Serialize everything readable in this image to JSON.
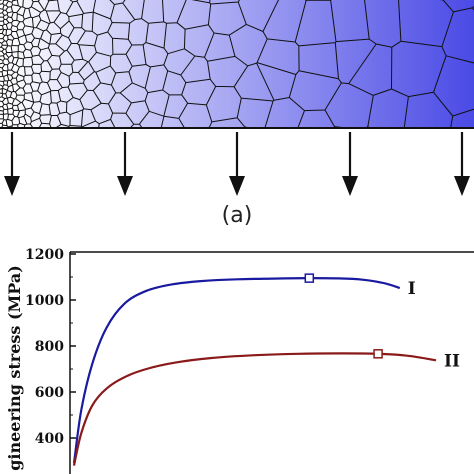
{
  "panel_a": {
    "label": "(a)",
    "gradient_colors": [
      "#ffffff",
      "#4a4ae6"
    ],
    "grain_outline_color": "#111111",
    "arrow_count": 5
  },
  "chart_data": {
    "type": "line",
    "ylabel": "gineering stress (MPa)",
    "yticks": [
      400,
      600,
      800,
      1000,
      1200
    ],
    "ylim": [
      300,
      1250
    ],
    "x_range": [
      0,
      1
    ],
    "series": [
      {
        "name": "I",
        "color": "#1a1aa0",
        "x": [
          0.0,
          0.02,
          0.05,
          0.09,
          0.14,
          0.2,
          0.27,
          0.35,
          0.45,
          0.55,
          0.65,
          0.73,
          0.8,
          0.86,
          0.9
        ],
        "y": [
          290,
          520,
          720,
          880,
          985,
          1040,
          1068,
          1082,
          1090,
          1093,
          1095,
          1094,
          1088,
          1072,
          1052
        ],
        "marker_index": 10
      },
      {
        "name": "II",
        "color": "#8a1a1a",
        "x": [
          0.0,
          0.02,
          0.05,
          0.09,
          0.14,
          0.2,
          0.28,
          0.38,
          0.5,
          0.62,
          0.74,
          0.84,
          0.92,
          1.0
        ],
        "y": [
          280,
          420,
          540,
          615,
          665,
          700,
          728,
          748,
          760,
          766,
          768,
          766,
          758,
          738
        ],
        "marker_index": 11
      }
    ]
  }
}
